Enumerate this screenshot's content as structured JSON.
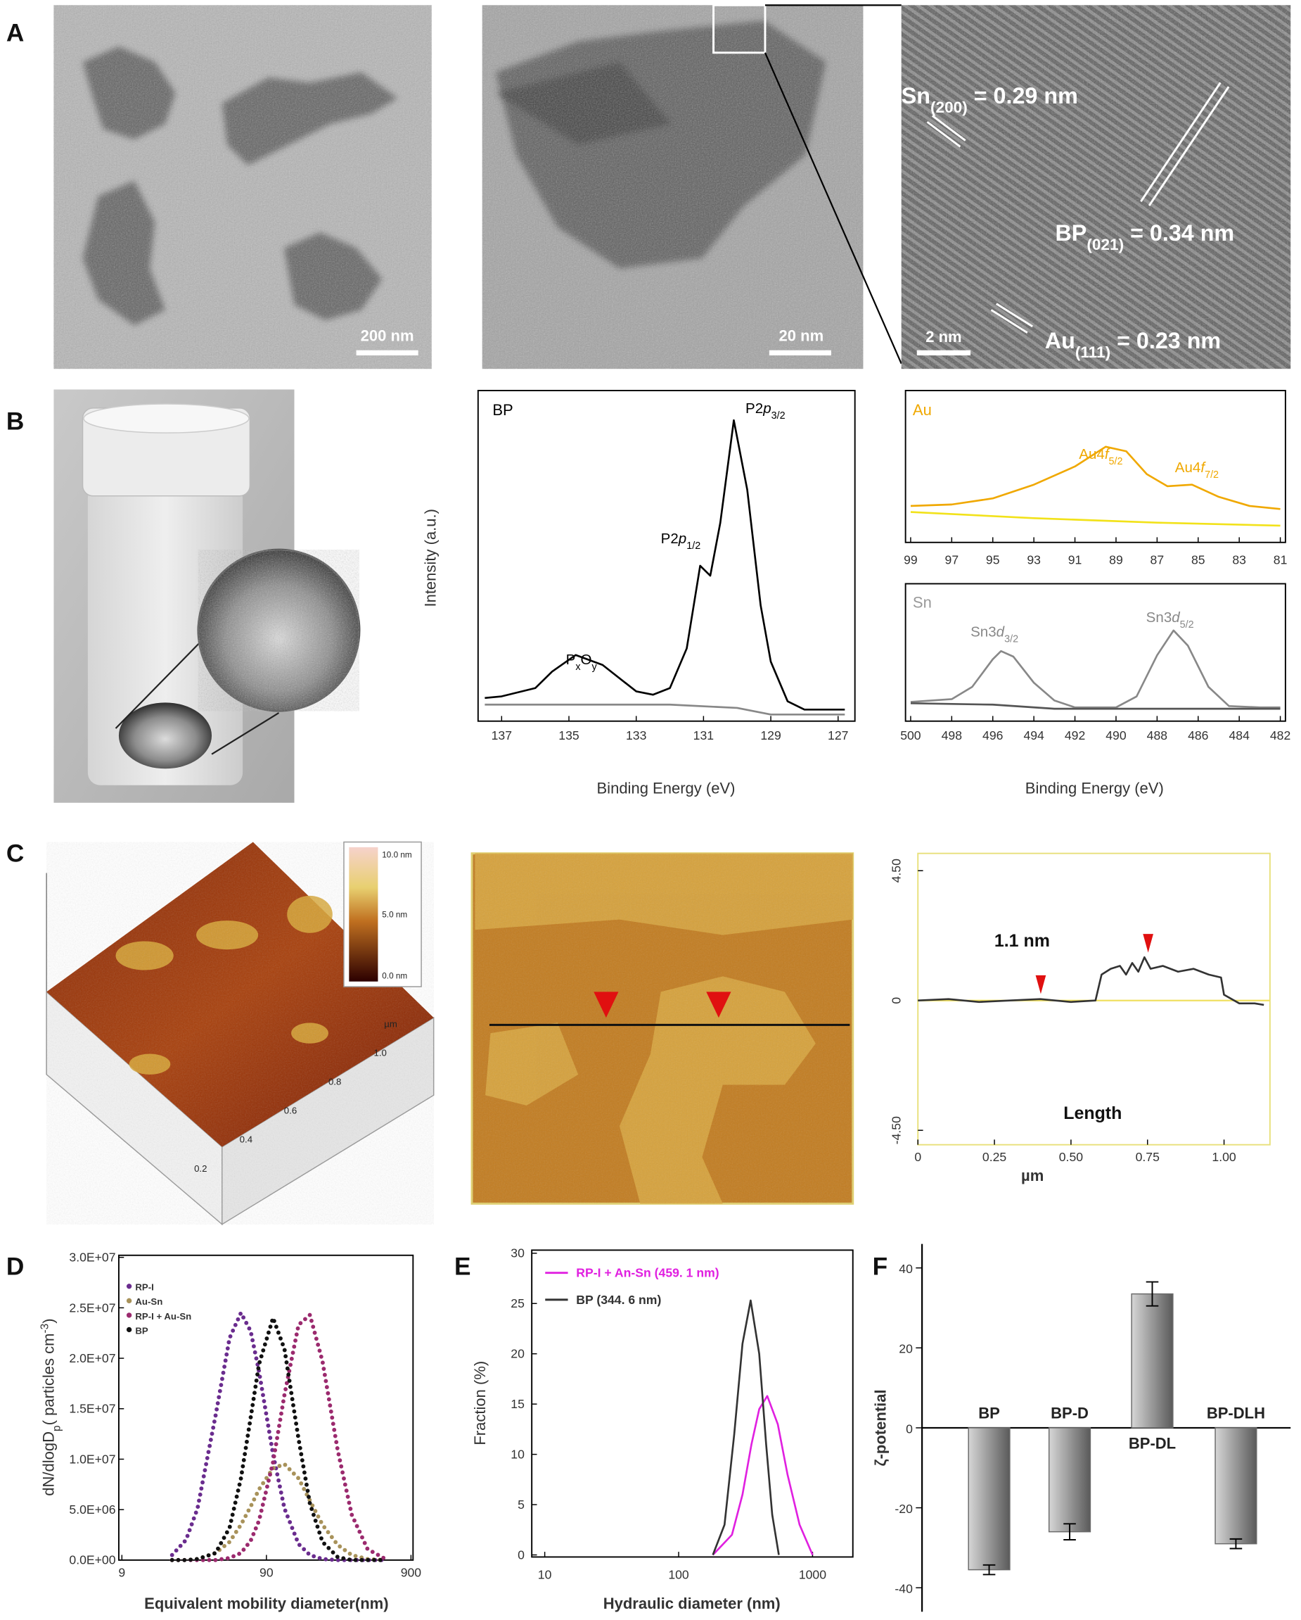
{
  "panels": [
    "A",
    "B",
    "C",
    "D",
    "E",
    "F"
  ],
  "images": {
    "tem_low": {
      "scale_bar": "200 nm"
    },
    "tem_mid": {
      "scale_bar": "20 nm"
    },
    "hrtem": {
      "scale_bar": "2 nm",
      "lattice": [
        {
          "parts": [
            {
              "t": "Sn"
            },
            {
              "t": "(200)",
              "style": "sub"
            },
            {
              "t": " = 0.29 nm"
            }
          ]
        },
        {
          "parts": [
            {
              "t": "BP"
            },
            {
              "t": "(021)",
              "style": "sub"
            },
            {
              "t": " = 0.34 nm"
            }
          ]
        },
        {
          "parts": [
            {
              "t": "Au"
            },
            {
              "t": "(111)",
              "style": "sub"
            },
            {
              "t": " = 0.23 nm"
            }
          ]
        }
      ]
    },
    "afm_3d": {
      "colorbar": [
        "10.0 nm",
        "5.0 nm",
        "0.0 nm"
      ],
      "axis_unit": "µm",
      "axis_ticks": [
        "1.0",
        "0.8",
        "0.6",
        "0.4",
        "0.2"
      ]
    }
  },
  "chart_data": [
    {
      "type": "line",
      "label": "BP",
      "label_color": "#000000",
      "xlim": [
        137.7,
        126.5
      ],
      "xticks": [
        137,
        135,
        133,
        131,
        129,
        127
      ],
      "ylim": [
        0,
        100
      ],
      "xlabel": "Binding Energy (eV)",
      "ylabel": "Intensity (a.u.)",
      "annotation_color": "#000000",
      "series": [
        {
          "color": "#000000",
          "x": [
            137.5,
            137,
            136,
            135.5,
            134.8,
            134,
            133,
            132.5,
            132,
            131.5,
            131.1,
            130.8,
            130.5,
            130.1,
            129.7,
            129.3,
            129,
            128.5,
            128,
            126.8
          ],
          "values": [
            7,
            7.5,
            10,
            15,
            20,
            17,
            9,
            8,
            10,
            22,
            47,
            44,
            60,
            91,
            70,
            35,
            18,
            6,
            3.5,
            3.5
          ]
        },
        {
          "color": "#888888",
          "x": [
            137.5,
            132,
            130,
            129,
            126.8
          ],
          "values": [
            5,
            5,
            4,
            2,
            2
          ]
        }
      ],
      "annotations": [
        {
          "parts": [
            {
              "t": "P"
            },
            {
              "t": "x",
              "style": "sub"
            },
            {
              "t": "O"
            },
            {
              "t": "y",
              "style": "sub"
            }
          ]
        },
        {
          "parts": [
            {
              "t": "P2"
            },
            {
              "t": "p",
              "style": "italic"
            },
            {
              "t": "1/2",
              "style": "sub"
            }
          ]
        },
        {
          "parts": [
            {
              "t": "P2"
            },
            {
              "t": "p",
              "style": "italic"
            },
            {
              "t": "3/2",
              "style": "sub"
            }
          ]
        }
      ]
    },
    {
      "type": "line",
      "label": "Au",
      "label_color": "#f0a800",
      "xlim": [
        99.25,
        80.75
      ],
      "xticks": [
        99,
        97,
        95,
        93,
        91,
        89,
        87,
        85,
        83,
        81
      ],
      "ylim": [
        0,
        100
      ],
      "annotation_color": "#f0a800",
      "series": [
        {
          "color": "#f0a800",
          "x": [
            99,
            97,
            95,
            93,
            91,
            89.5,
            88.5,
            87.5,
            86.5,
            85.3,
            84,
            82.5,
            81
          ],
          "values": [
            24,
            25,
            29,
            38,
            50,
            63,
            60,
            45,
            37,
            38,
            30,
            24,
            22
          ]
        },
        {
          "color": "#f2e21a",
          "x": [
            99,
            93,
            87,
            81
          ],
          "values": [
            20,
            16,
            13,
            11
          ]
        }
      ],
      "annotations": [
        {
          "parts": [
            {
              "t": "Au4"
            },
            {
              "t": "f",
              "style": "italic"
            },
            {
              "t": "5/2",
              "style": "sub"
            }
          ]
        },
        {
          "parts": [
            {
              "t": "Au4"
            },
            {
              "t": "f",
              "style": "italic"
            },
            {
              "t": "7/2",
              "style": "sub"
            }
          ]
        }
      ]
    },
    {
      "type": "line",
      "label": "Sn",
      "label_color": "#999999",
      "xlim": [
        500.25,
        481.75
      ],
      "xticks": [
        500,
        498,
        496,
        494,
        492,
        490,
        488,
        486,
        484,
        482
      ],
      "ylim": [
        0,
        100
      ],
      "xlabel": "Binding Energy (eV)",
      "annotation_color": "#888888",
      "series": [
        {
          "color": "#888888",
          "x": [
            500,
            498,
            497,
            496,
            495.6,
            495,
            494,
            493,
            492,
            490,
            489,
            488,
            487.2,
            486.5,
            485.5,
            484.5,
            483,
            482
          ],
          "values": [
            14,
            16,
            25,
            45,
            51,
            47,
            28,
            15,
            10,
            10,
            18,
            48,
            66,
            55,
            25,
            11,
            10,
            10
          ]
        },
        {
          "color": "#555555",
          "x": [
            500,
            496,
            493,
            490,
            482
          ],
          "values": [
            13,
            12,
            9,
            9,
            9
          ]
        }
      ],
      "annotations": [
        {
          "parts": [
            {
              "t": "Sn3"
            },
            {
              "t": "d",
              "style": "italic"
            },
            {
              "t": "3/2",
              "style": "sub"
            }
          ]
        },
        {
          "parts": [
            {
              "t": "Sn3"
            },
            {
              "t": "d",
              "style": "italic"
            },
            {
              "t": "5/2",
              "style": "sub"
            }
          ]
        }
      ]
    },
    {
      "type": "line",
      "frame_color": "#e8e07a",
      "zero_line_color": "#f0e060",
      "xlim": [
        0,
        1.15
      ],
      "xticks": [
        0,
        0.25,
        {
          "value": 0.5,
          "label": "0.50"
        },
        0.75,
        {
          "value": 1,
          "label": "1.00"
        }
      ],
      "ylim": [
        -5,
        5.1
      ],
      "yticks": [
        {
          "value": -4.5,
          "label": "-4.50"
        },
        0,
        {
          "value": 4.5,
          "label": "4.50"
        }
      ],
      "xlabel": "µm",
      "annotation_color": "#111111",
      "series": [
        {
          "color": "#333333",
          "x": [
            0,
            0.1,
            0.2,
            0.3,
            0.4,
            0.5,
            0.58,
            0.6,
            0.63,
            0.66,
            0.68,
            0.7,
            0.72,
            0.74,
            0.76,
            0.8,
            0.85,
            0.9,
            0.95,
            0.99,
            1.0,
            1.05,
            1.1,
            1.13
          ],
          "values": [
            0,
            0.05,
            -0.05,
            0,
            0.05,
            -0.05,
            0,
            0.9,
            1.1,
            1.2,
            0.9,
            1.3,
            1.0,
            1.5,
            1.1,
            1.2,
            1.0,
            1.1,
            0.9,
            0.8,
            0.2,
            -0.1,
            -0.1,
            -0.15
          ]
        }
      ],
      "annotations": [
        {
          "parts": [
            {
              "t": "1.1 nm"
            }
          ]
        },
        {
          "parts": [
            {
              "t": "Length"
            }
          ]
        }
      ]
    },
    {
      "type": "line",
      "marker": "dot",
      "xlog": true,
      "legend": "top-left",
      "xlim": [
        9,
        900
      ],
      "xticks": [
        9,
        90,
        900
      ],
      "ylim": [
        0,
        30000000
      ],
      "yticks": [
        {
          "value": 0,
          "label": "0.0E+00"
        },
        {
          "value": 5000000,
          "label": "5.0E+06"
        },
        {
          "value": 10000000,
          "label": "1.0E+07"
        },
        {
          "value": 15000000,
          "label": "1.5E+07"
        },
        {
          "value": 20000000,
          "label": "2.0E+07"
        },
        {
          "value": 25000000,
          "label": "2.5E+07"
        },
        {
          "value": 30000000,
          "label": "3.0E+07"
        }
      ],
      "xlabel": "Equivalent mobility diameter(nm)",
      "ylabel": {
        "parts": [
          {
            "t": "dN/dlogD"
          },
          {
            "t": "p",
            "style": "sub"
          },
          {
            "t": "( particles cm"
          },
          {
            "t": "-3",
            "style": "sup"
          },
          {
            "t": ")"
          }
        ]
      },
      "x": [
        20,
        25,
        30,
        40,
        50,
        60,
        70,
        80,
        100,
        120,
        150,
        180,
        220,
        280,
        350,
        450,
        600
      ],
      "series": [
        {
          "name": "RP-I",
          "color": "#6a2c8e",
          "values": [
            500000,
            2000000,
            5100000,
            14300000,
            22000000,
            24500000,
            22700000,
            18700000,
            10500000,
            5100000,
            1600000,
            500000,
            100000,
            0,
            0,
            0,
            0
          ]
        },
        {
          "name": "Au-Sn",
          "color": "#a8925a",
          "values": [
            0,
            0,
            100000,
            700000,
            1800000,
            3500000,
            5300000,
            7000000,
            9100000,
            9500000,
            8100000,
            5900000,
            3500000,
            1500000,
            500000,
            100000,
            0
          ]
        },
        {
          "name": "RP-I + Au-Sn",
          "color": "#9b2a6e",
          "values": [
            0,
            0,
            0,
            0,
            200000,
            700000,
            1900000,
            3900000,
            9700000,
            16400000,
            23300000,
            24300000,
            19700000,
            10900000,
            4500000,
            1100000,
            100000
          ]
        },
        {
          "name": "BP",
          "color": "#111111",
          "values": [
            0,
            0,
            100000,
            700000,
            3200000,
            8100000,
            14100000,
            19400000,
            24000000,
            20900000,
            12000000,
            5600000,
            1800000,
            300000,
            0,
            0,
            0
          ]
        }
      ]
    },
    {
      "type": "line",
      "xlog": true,
      "legend": "top-left",
      "xlim": [
        8,
        2000
      ],
      "xticks": [
        10,
        100,
        1000
      ],
      "ylim": [
        0,
        30
      ],
      "yticks": [
        0,
        5,
        10,
        15,
        20,
        25,
        30
      ],
      "xlabel": "Hydraulic diameter (nm)",
      "ylabel": "Fraction (%)",
      "series": [
        {
          "name": "RP-I + An-Sn (459. 1 nm)",
          "color": "#e020e0",
          "x": [
            180,
            250,
            300,
            350,
            400,
            459,
            550,
            650,
            800,
            1000
          ],
          "values": [
            0,
            2,
            6,
            11,
            14.5,
            15.8,
            13,
            8,
            3,
            0
          ]
        },
        {
          "name": "BP (344. 6 nm)",
          "color": "#333333",
          "x": [
            180,
            220,
            260,
            300,
            344.6,
            400,
            450,
            500,
            560
          ],
          "values": [
            0,
            3,
            12,
            21,
            25.3,
            20,
            11,
            4,
            0
          ]
        }
      ]
    },
    {
      "type": "bar",
      "color": "#6a6a6a",
      "categories": [
        "BP",
        "BP-D",
        "BP-DL",
        "BP-DLH"
      ],
      "values": [
        -35.5,
        -26,
        33.5,
        -29
      ],
      "errors": [
        1.2,
        2,
        3,
        1.2
      ],
      "ylim": [
        -46,
        46
      ],
      "yticks": [
        -40,
        -20,
        0,
        20,
        40
      ],
      "ylabel": "ζ-potential"
    }
  ]
}
